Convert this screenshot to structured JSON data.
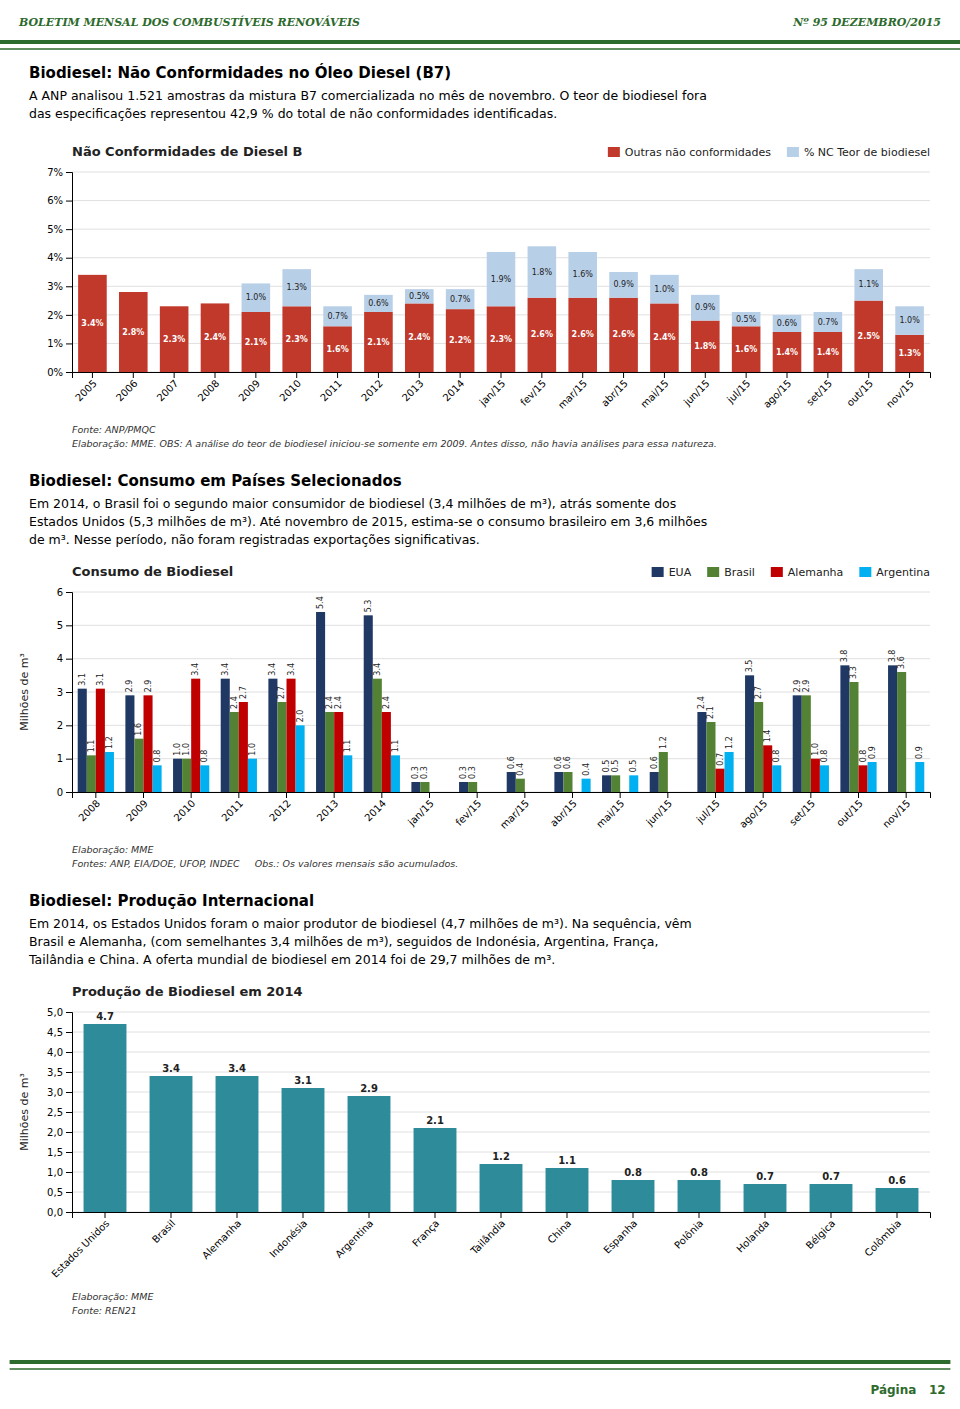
{
  "header": {
    "left": "BOLETIM MENSAL DOS COMBUSTÍVEIS RENOVÁVEIS",
    "right": "Nº 95 DEZEMBRO/2015",
    "color": "#2d6a2d"
  },
  "sections": [
    {
      "title": "Biodiesel: Não Conformidades no Óleo Diesel (B7)",
      "text": [
        "A ANP analisou 1.521 amostras da mistura B7 comercializada no mês de novembro. O teor de biodiesel fora",
        "das especificações representou 42,9 % do total de não conformidades identificadas."
      ]
    },
    {
      "title": "Biodiesel: Consumo em Países Selecionados",
      "text": [
        "Em 2014, o Brasil foi o segundo maior consumidor de biodiesel (3,4 milhões de m³), atrás somente dos",
        "Estados Unidos (5,3 milhões de m³). Até novembro de 2015, estima-se o consumo brasileiro em 3,6 milhões",
        "de m³. Nesse período, não foram registradas exportações significativas."
      ]
    },
    {
      "title": "Biodiesel: Produção Internacional",
      "text": [
        "Em 2014, os Estados Unidos foram o maior produtor de biodiesel (4,7 milhões de m³). Na sequência, vêm",
        "Brasil e Alemanha, (com semelhantes 3,4 milhões de m³), seguidos de Indonésia, Argentina, França,",
        "Tailândia e China. A oferta mundial de biodiesel em 2014 foi de 29,7 milhões de m³."
      ]
    }
  ],
  "chart_data": [
    {
      "type": "bar",
      "title": "Não Conformidades de Diesel B",
      "stacked": true,
      "categories": [
        "2005",
        "2006",
        "2007",
        "2008",
        "2009",
        "2010",
        "2011",
        "2012",
        "2013",
        "2014",
        "jan/15",
        "fev/15",
        "mar/15",
        "abr/15",
        "mai/15",
        "jun/15",
        "jul/15",
        "ago/15",
        "set/15",
        "out/15",
        "nov/15"
      ],
      "series": [
        {
          "name": "Outras não conformidades",
          "color": "#c0392b",
          "values": [
            3.4,
            2.8,
            2.3,
            2.4,
            2.1,
            2.3,
            1.6,
            2.1,
            2.4,
            2.2,
            2.3,
            2.6,
            2.6,
            2.6,
            2.4,
            1.8,
            1.6,
            1.4,
            1.4,
            2.5,
            1.3
          ],
          "value_labels": [
            "3.4%",
            "2.8%",
            "2.3%",
            "2.4%",
            "2.1%",
            "2.3%",
            "1.6%",
            "2.1%",
            "2.4%",
            "2.2%",
            "2.3%",
            "2.6%",
            "2.6%",
            "2.6%",
            "2.4%",
            "1.8%",
            "1.6%",
            "1.4%",
            "1.4%",
            "2.5%",
            "1.3%"
          ]
        },
        {
          "name": "% NC Teor de biodiesel",
          "color": "#b8cfe8",
          "values": [
            0.0,
            0.0,
            0.0,
            0.0,
            1.0,
            1.3,
            0.7,
            0.6,
            0.5,
            0.7,
            1.9,
            1.8,
            1.6,
            0.9,
            1.0,
            0.9,
            0.5,
            0.6,
            0.7,
            1.1,
            1.0
          ],
          "value_labels": [
            null,
            null,
            null,
            null,
            "1.0%",
            "1.3%",
            "0.7%",
            "0.6%",
            "0.5%",
            "0.7%",
            "1.9%",
            "1.8%",
            "1.6%",
            "0.9%",
            "1.0%",
            "0.9%",
            "0.5%",
            "0.6%",
            "0.7%",
            "1.1%",
            "1.0%"
          ]
        }
      ],
      "ylim": [
        0,
        7
      ],
      "yticks": [
        {
          "value": 0,
          "label": "0%"
        },
        {
          "value": 1,
          "label": "1%"
        },
        {
          "value": 2,
          "label": "2%"
        },
        {
          "value": 3,
          "label": "3%"
        },
        {
          "value": 4,
          "label": "4%"
        },
        {
          "value": 5,
          "label": "5%"
        },
        {
          "value": 6,
          "label": "6%"
        },
        {
          "value": 7,
          "label": "7%"
        }
      ],
      "grid": true,
      "legend": "upper right",
      "data_labels": true,
      "notes": [
        "Fonte: ANP/PMQC",
        "Elaboração: MME. OBS: A análise do teor de biodiesel iniciou-se somente em 2009. Antes disso, não havia análises para essa natureza."
      ]
    },
    {
      "type": "bar",
      "title": "Consumo de Biodiesel",
      "y_label": "Milhões de m³",
      "categories": [
        "2008",
        "2009",
        "2010",
        "2011",
        "2012",
        "2013",
        "2014",
        "jan/15",
        "fev/15",
        "mar/15",
        "abr/15",
        "mai/15",
        "jun/15",
        "jul/15",
        "ago/15",
        "set/15",
        "out/15",
        "nov/15"
      ],
      "series": [
        {
          "name": "EUA",
          "color": "#1f3864",
          "values": [
            3.1,
            2.9,
            1.0,
            3.4,
            3.4,
            5.4,
            5.3,
            0.3,
            0.3,
            0.6,
            0.6,
            0.5,
            0.6,
            2.4,
            3.5,
            2.9,
            3.8,
            3.8
          ],
          "value_labels": [
            "3.1",
            "2.9",
            "1.0",
            "3.4",
            "3.4",
            "5.4",
            "5.3",
            "0.3",
            "0.3",
            "0.6",
            "0.6",
            "0.5",
            "0.6",
            "2.4",
            "3.5",
            "2.9",
            "3.8",
            "3.8"
          ]
        },
        {
          "name": "Brasil",
          "color": "#548235",
          "values": [
            1.1,
            1.6,
            1.0,
            2.4,
            2.7,
            2.4,
            3.4,
            0.3,
            0.3,
            0.4,
            0.6,
            0.5,
            1.2,
            2.1,
            2.7,
            2.9,
            3.3,
            3.6
          ],
          "value_labels": [
            "1.1",
            "1.6",
            "1.0",
            "2.4",
            "2.7",
            "2.4",
            "3.4",
            "0.3",
            "0.3",
            "0.4",
            "0.6",
            "0.5",
            "1.2",
            "2.1",
            "2.7",
            "2.9",
            "3.3",
            "3.6"
          ]
        },
        {
          "name": "Alemanha",
          "color": "#c00000",
          "values": [
            3.1,
            2.9,
            3.4,
            2.7,
            3.4,
            2.4,
            2.4,
            0.0,
            0.0,
            0.0,
            0.0,
            0.0,
            0.0,
            0.7,
            1.4,
            1.0,
            0.8,
            0.0
          ],
          "value_labels": [
            "3.1",
            "2.9",
            "3.4",
            "2.7",
            "3.4",
            "2.4",
            "2.4",
            null,
            null,
            null,
            null,
            null,
            null,
            "0.7",
            "1.4",
            "1.0",
            "0.8",
            null
          ]
        },
        {
          "name": "Argentina",
          "color": "#00b0f0",
          "values": [
            1.2,
            0.8,
            0.8,
            1.0,
            2.0,
            1.1,
            1.1,
            0.0,
            0.0,
            0.0,
            0.4,
            0.5,
            0.0,
            1.2,
            0.8,
            0.8,
            0.9,
            0.9
          ],
          "value_labels": [
            "1.2",
            "0.8",
            "0.8",
            "1.0",
            "2.0",
            "1.1",
            "1.1",
            null,
            null,
            null,
            "0.4",
            "0.5",
            null,
            "1.2",
            "0.8",
            "0.8",
            "0.9",
            "0.9"
          ]
        }
      ],
      "ylim": [
        0,
        6
      ],
      "yticks": [
        0,
        1,
        2,
        3,
        4,
        5,
        6
      ],
      "grid": true,
      "legend": "upper right",
      "data_labels": true,
      "notes": [
        "Elaboração: MME",
        "Fontes: ANP, EIA/DOE, UFOP, INDEC     Obs.: Os valores mensais são acumulados."
      ]
    },
    {
      "type": "bar",
      "title": "Produção de Biodiesel em 2014",
      "y_label": "Milhões de m³",
      "categories": [
        "Estados Unidos",
        "Brasil",
        "Alemanha",
        "Indonésia",
        "Argentina",
        "França",
        "Tailândia",
        "China",
        "Espanha",
        "Polônia",
        "Holanda",
        "Bélgica",
        "Colômbia"
      ],
      "values": [
        4.7,
        3.4,
        3.4,
        3.1,
        2.9,
        2.1,
        1.2,
        1.1,
        0.8,
        0.8,
        0.7,
        0.7,
        0.6
      ],
      "value_labels": [
        "4.7",
        "3.4",
        "3.4",
        "3.1",
        "2.9",
        "2.1",
        "1.2",
        "1.1",
        "0.8",
        "0.8",
        "0.7",
        "0.7",
        "0.6"
      ],
      "color": "#2e8b9a",
      "ylim": [
        0,
        5
      ],
      "yticks": [
        {
          "value": 0,
          "label": "0,0"
        },
        {
          "value": 0.5,
          "label": "0,5"
        },
        {
          "value": 1,
          "label": "1,0"
        },
        {
          "value": 1.5,
          "label": "1,5"
        },
        {
          "value": 2,
          "label": "2,0"
        },
        {
          "value": 2.5,
          "label": "2,5"
        },
        {
          "value": 3,
          "label": "3,0"
        },
        {
          "value": 3.5,
          "label": "3,5"
        },
        {
          "value": 4,
          "label": "4,0"
        },
        {
          "value": 4.5,
          "label": "4,5"
        },
        {
          "value": 5,
          "label": "5,0"
        }
      ],
      "grid": true,
      "data_labels": true,
      "notes": [
        "Elaboração: MME",
        "Fonte: REN21"
      ]
    }
  ],
  "footer": {
    "text": "Página   12"
  }
}
